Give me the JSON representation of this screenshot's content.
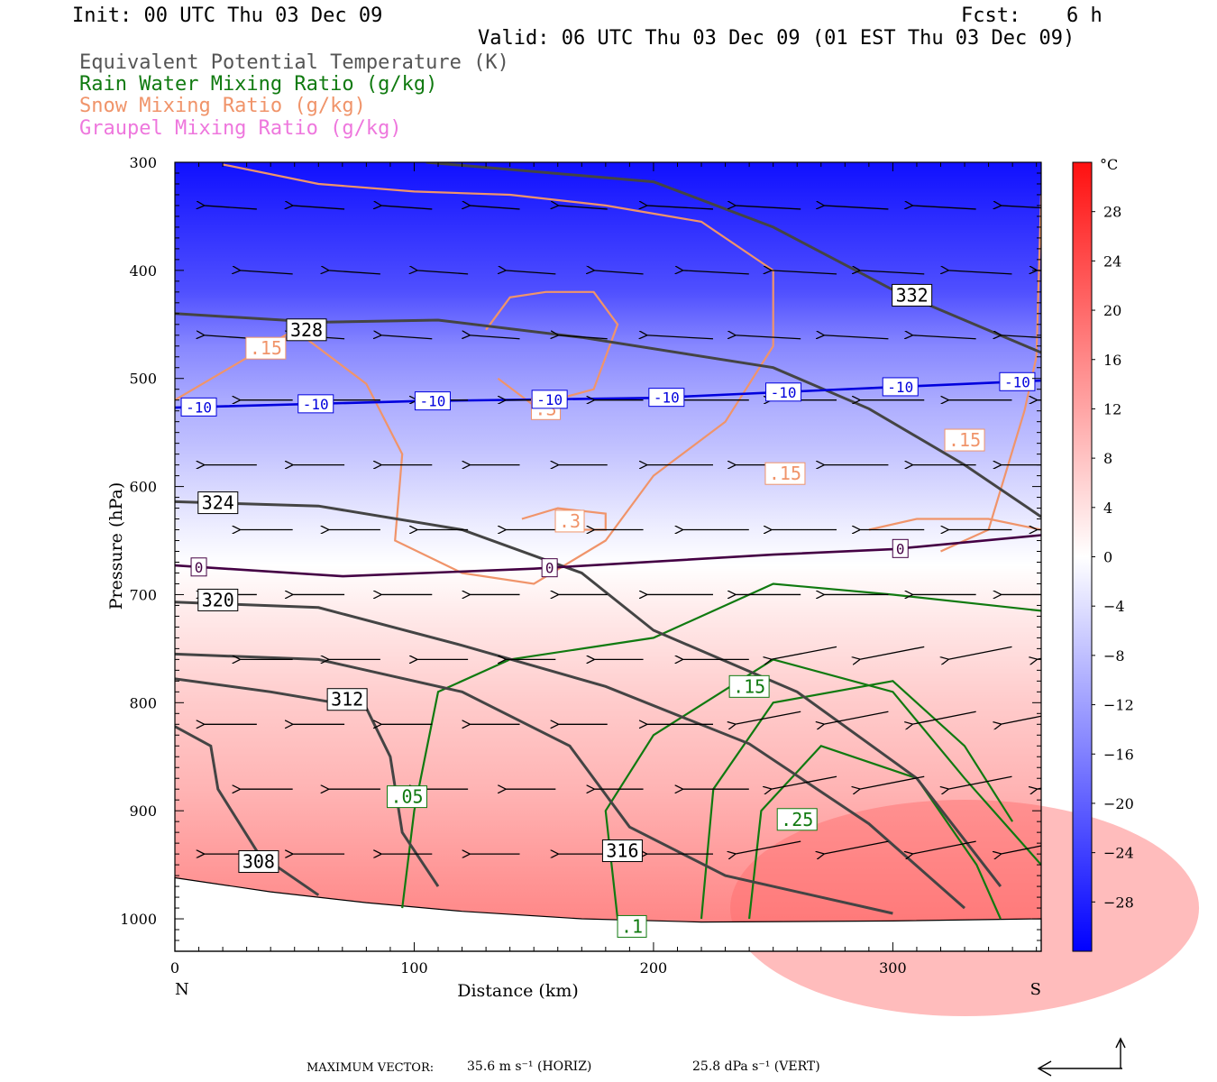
{
  "header": {
    "init": "Init: 00 UTC Thu 03 Dec 09",
    "fcst_label": "Fcst:",
    "fcst_value": "6 h",
    "valid": "Valid: 06 UTC Thu 03 Dec 09 (01 EST Thu 03 Dec 09)",
    "fields": [
      {
        "label": "Equivalent Potential Temperature (K)",
        "color": "#555555"
      },
      {
        "label": "Rain Water Mixing Ratio (g/kg)",
        "color": "#107a10"
      },
      {
        "label": "Snow Mixing Ratio (g/kg)",
        "color": "#f0946a"
      },
      {
        "label": "Graupel Mixing Ratio (g/kg)",
        "color": "#ee77dd"
      }
    ]
  },
  "chart_data": {
    "type": "cross-section",
    "xlabel": "Distance (km)",
    "ylabel": "Pressure (hPa)",
    "xlim": [
      0,
      362
    ],
    "ylim": [
      1030,
      300
    ],
    "x_ticks": [
      0,
      100,
      200,
      300
    ],
    "y_ticks": [
      300,
      400,
      500,
      600,
      700,
      800,
      900,
      1000
    ],
    "left_end_label": "N",
    "right_end_label": "S",
    "temperature_colorbar": {
      "unit": "°C",
      "range": [
        -32,
        32
      ],
      "tick_values": [
        28,
        24,
        20,
        16,
        12,
        8,
        4,
        0,
        -4,
        -8,
        -12,
        -16,
        -20,
        -24,
        -28
      ],
      "cold_color": "#0000ff",
      "zero_color": "#ffffff",
      "warm_color": "#ff1010"
    },
    "temperature_isotherms": [
      {
        "label": "-10",
        "color": "#0000dd",
        "points": [
          [
            0,
            527
          ],
          [
            100,
            521
          ],
          [
            200,
            518
          ],
          [
            300,
            508
          ],
          [
            362,
            502
          ]
        ]
      },
      {
        "label": "0",
        "color": "#440044",
        "points": [
          [
            0,
            673
          ],
          [
            70,
            683
          ],
          [
            150,
            676
          ],
          [
            250,
            663
          ],
          [
            300,
            658
          ],
          [
            362,
            645
          ]
        ]
      }
    ],
    "theta_e_contours": [
      {
        "label": "332",
        "label_at": [
          308,
          423
        ],
        "points": [
          [
            105,
            300
          ],
          [
            200,
            318
          ],
          [
            250,
            360
          ],
          [
            300,
            418
          ],
          [
            362,
            476
          ]
        ]
      },
      {
        "label": "328",
        "label_at": [
          55,
          455
        ],
        "points": [
          [
            0,
            440
          ],
          [
            60,
            448
          ],
          [
            110,
            446
          ],
          [
            170,
            462
          ],
          [
            250,
            490
          ],
          [
            290,
            528
          ],
          [
            330,
            580
          ],
          [
            362,
            628
          ]
        ]
      },
      {
        "label": "324",
        "label_at": [
          18,
          615
        ],
        "points": [
          [
            0,
            614
          ],
          [
            60,
            618
          ],
          [
            120,
            640
          ],
          [
            170,
            680
          ],
          [
            200,
            733
          ],
          [
            260,
            790
          ],
          [
            310,
            870
          ],
          [
            345,
            970
          ]
        ]
      },
      {
        "label": "320",
        "label_at": [
          18,
          705
        ],
        "points": [
          [
            0,
            707
          ],
          [
            60,
            712
          ],
          [
            120,
            747
          ],
          [
            180,
            785
          ],
          [
            240,
            838
          ],
          [
            290,
            912
          ],
          [
            330,
            990
          ]
        ]
      },
      {
        "label": "316",
        "label_at": [
          187,
          937
        ],
        "points": [
          [
            0,
            755
          ],
          [
            60,
            760
          ],
          [
            120,
            790
          ],
          [
            165,
            840
          ],
          [
            190,
            915
          ],
          [
            230,
            960
          ],
          [
            300,
            995
          ]
        ]
      },
      {
        "label": "312",
        "label_at": [
          72,
          797
        ],
        "points": [
          [
            0,
            778
          ],
          [
            40,
            790
          ],
          [
            80,
            805
          ],
          [
            90,
            850
          ],
          [
            95,
            920
          ],
          [
            110,
            970
          ]
        ]
      },
      {
        "label": "308",
        "label_at": [
          35,
          947
        ],
        "points": [
          [
            0,
            822
          ],
          [
            15,
            840
          ],
          [
            18,
            880
          ],
          [
            35,
            940
          ],
          [
            60,
            978
          ]
        ]
      }
    ],
    "rain_contours": [
      {
        "label": ".05",
        "label_at": [
          97,
          887
        ],
        "points": [
          [
            95,
            990
          ],
          [
            100,
            900
          ],
          [
            110,
            790
          ],
          [
            140,
            760
          ],
          [
            200,
            740
          ],
          [
            250,
            690
          ],
          [
            300,
            700
          ],
          [
            362,
            715
          ]
        ]
      },
      {
        "label": ".1",
        "label_at": [
          191,
          1007
        ],
        "points": [
          [
            185,
            1000
          ],
          [
            180,
            900
          ],
          [
            200,
            830
          ],
          [
            250,
            760
          ],
          [
            300,
            790
          ],
          [
            330,
            870
          ],
          [
            362,
            950
          ]
        ]
      },
      {
        "label": ".15",
        "label_at": [
          240,
          785
        ],
        "points": [
          [
            220,
            1000
          ],
          [
            225,
            880
          ],
          [
            250,
            800
          ],
          [
            300,
            780
          ],
          [
            330,
            840
          ],
          [
            350,
            910
          ]
        ]
      },
      {
        "label": ".25",
        "label_at": [
          260,
          908
        ],
        "points": [
          [
            240,
            1000
          ],
          [
            245,
            900
          ],
          [
            270,
            840
          ],
          [
            310,
            870
          ],
          [
            335,
            950
          ],
          [
            345,
            1000
          ]
        ]
      }
    ],
    "snow_contours": [
      {
        "label": ".15",
        "label_at": [
          38,
          472
        ],
        "points": [
          [
            0,
            520
          ],
          [
            50,
            455
          ],
          [
            80,
            505
          ],
          [
            95,
            570
          ],
          [
            92,
            650
          ],
          [
            120,
            680
          ],
          [
            150,
            690
          ],
          [
            180,
            650
          ],
          [
            200,
            590
          ],
          [
            230,
            540
          ],
          [
            250,
            470
          ],
          [
            250,
            400
          ],
          [
            220,
            355
          ],
          [
            180,
            340
          ],
          [
            140,
            330
          ],
          [
            100,
            327
          ],
          [
            60,
            320
          ],
          [
            20,
            302
          ]
        ]
      },
      {
        "label": ".3",
        "label_at": [
          155,
          528
        ],
        "points": [
          [
            130,
            455
          ],
          [
            140,
            425
          ],
          [
            155,
            420
          ],
          [
            175,
            420
          ],
          [
            185,
            450
          ],
          [
            175,
            510
          ],
          [
            150,
            525
          ],
          [
            135,
            500
          ]
        ]
      },
      {
        "label": ".3",
        "label_at": [
          165,
          632
        ],
        "points": [
          [
            145,
            630
          ],
          [
            160,
            620
          ],
          [
            180,
            625
          ],
          [
            180,
            640
          ],
          [
            160,
            640
          ]
        ]
      },
      {
        "label": ".15",
        "label_at": [
          255,
          588
        ],
        "points": [
          [
            320,
            660
          ],
          [
            340,
            640
          ],
          [
            355,
            530
          ],
          [
            360,
            480
          ],
          [
            362,
            330
          ]
        ]
      },
      {
        "label": ".15",
        "label_at": [
          330,
          557
        ],
        "points": [
          [
            290,
            640
          ],
          [
            310,
            630
          ],
          [
            340,
            630
          ],
          [
            362,
            640
          ]
        ]
      }
    ],
    "wind_vectors_note": "arrows show wind in cross-section plane, directed toward N",
    "max_vector_horiz": "35.6 m s⁻¹ (HORIZ)",
    "max_vector_vert": "25.8 dPa s⁻¹ (VERT)",
    "max_vector_label": "MAXIMUM VECTOR:"
  }
}
